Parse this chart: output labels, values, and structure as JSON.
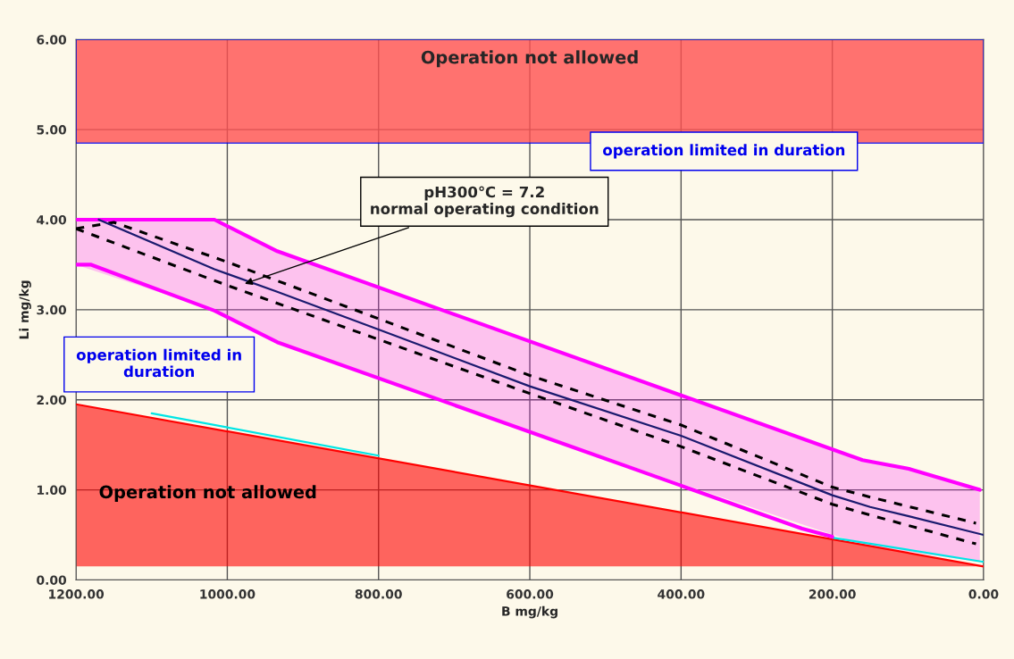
{
  "chart_data": {
    "type": "line",
    "xlabel": "B mg/kg",
    "ylabel": "Li mg/kg",
    "xlim": [
      1200,
      0
    ],
    "ylim": [
      0,
      6
    ],
    "xticks": [
      {
        "value": 1200,
        "label": "1200.00"
      },
      {
        "value": 1000,
        "label": "1000.00"
      },
      {
        "value": 800,
        "label": "800.00"
      },
      {
        "value": 600,
        "label": "600.00"
      },
      {
        "value": 400,
        "label": "400.00"
      },
      {
        "value": 200,
        "label": "200.00"
      },
      {
        "value": 0,
        "label": "0.00"
      }
    ],
    "yticks": [
      {
        "value": 0,
        "label": "0.00"
      },
      {
        "value": 1,
        "label": "1.00"
      },
      {
        "value": 2,
        "label": "2.00"
      },
      {
        "value": 3,
        "label": "3.00"
      },
      {
        "value": 4,
        "label": "4.00"
      },
      {
        "value": 5,
        "label": "5.00"
      },
      {
        "value": 6,
        "label": "6.00"
      }
    ],
    "grid": true,
    "series": [
      {
        "name": "Operation not allowed",
        "color": "#ff0000",
        "x": [
          1200,
          0
        ],
        "values": [
          1.95,
          0.15
        ],
        "lower": [
          0.15,
          0.15
        ],
        "upper": [
          1.95,
          0.15
        ]
      },
      {
        "color": "#00e5e5",
        "x": [
          1100,
          800
        ],
        "values": [
          1.85,
          1.38
        ]
      },
      {
        "color": "#00e5e5",
        "x": [
          200,
          0
        ],
        "values": [
          0.47,
          0.2
        ]
      },
      {
        "color": "#ff00ff",
        "x": [
          1200,
          1017,
          934,
          400,
          160,
          97,
          5
        ],
        "values": [
          4.0,
          4.0,
          3.65,
          2.05,
          1.33,
          1.23,
          1.0
        ],
        "upper": [
          4.0,
          4.0,
          3.65,
          2.05,
          1.33,
          1.23,
          1.0
        ],
        "lower": [
          3.5,
          2.99,
          2.64,
          1.07,
          0.39,
          0.31,
          0.2
        ]
      },
      {
        "color": "#ff00ff",
        "x": [
          1200,
          1180,
          1017,
          934,
          240,
          200
        ],
        "values": [
          3.5,
          3.5,
          2.99,
          2.64,
          0.57,
          0.48
        ]
      },
      {
        "color": "#000000",
        "line_style": "dashed",
        "x": [
          1200,
          1150,
          1000,
          800,
          600,
          400,
          200,
          150,
          10
        ],
        "values": [
          3.9,
          3.97,
          3.53,
          2.9,
          2.27,
          1.72,
          1.03,
          0.92,
          0.63
        ]
      },
      {
        "color": "#000000",
        "line_style": "dashed",
        "x": [
          1200,
          1000,
          800,
          600,
          400,
          200,
          150,
          10
        ],
        "values": [
          3.9,
          3.27,
          2.67,
          2.07,
          1.48,
          0.84,
          0.72,
          0.4
        ]
      },
      {
        "color": "#1a1a6e",
        "x": [
          1170,
          1017,
          934,
          800,
          600,
          400,
          200,
          150,
          100,
          0
        ],
        "values": [
          4.0,
          3.45,
          3.2,
          2.78,
          2.15,
          1.6,
          0.94,
          0.81,
          0.71,
          0.5
        ]
      }
    ],
    "bands": [
      {
        "axis": "y",
        "from": 4.85,
        "to": 6,
        "label": "Operation not allowed",
        "color": "#ff5050"
      }
    ],
    "annotations": [
      {
        "text": "pH300℃ = 7.2\nnormal operating condition",
        "x": 980,
        "y": 3.28
      },
      "operation limited in duration",
      "operation limited in\nduration"
    ]
  }
}
